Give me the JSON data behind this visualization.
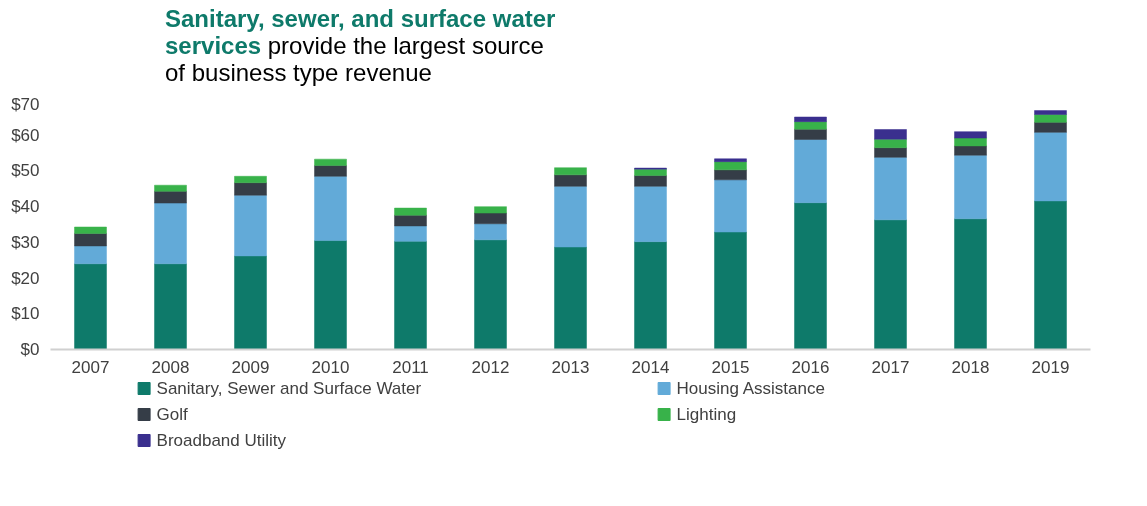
{
  "chart_data": {
    "type": "bar",
    "stacked": true,
    "title": "Sanitary, sewer, and surface water services",
    "subtitle": "provide the largest source of business type revenue",
    "categories": [
      "2007",
      "2008",
      "2009",
      "2010",
      "2011",
      "2012",
      "2013",
      "2014",
      "2015",
      "2016",
      "2017",
      "2018",
      "2019"
    ],
    "series": [
      {
        "name": "Sanitary, Sewer and Surface Water",
        "color": "#0e7a6a",
        "values": [
          24,
          24,
          26.2,
          30.5,
          30.3,
          30.7,
          28.7,
          30.2,
          32.9,
          41.1,
          36.3,
          36.6,
          41.6
        ]
      },
      {
        "name": "Housing Assistance",
        "color": "#62aad8",
        "values": [
          5,
          17,
          17,
          18,
          4.3,
          4.5,
          17,
          15.5,
          14.6,
          17.7,
          17.5,
          17.8,
          19.2
        ]
      },
      {
        "name": "Golf",
        "color": "#353d47",
        "values": [
          3.5,
          3.3,
          3.5,
          3,
          3,
          3,
          3.2,
          3,
          2.8,
          2.9,
          2.7,
          2.6,
          2.8
        ]
      },
      {
        "name": "Lighting",
        "color": "#38b24a",
        "values": [
          1.8,
          1.7,
          1.8,
          1.8,
          2,
          1.8,
          2,
          1.8,
          2.3,
          2.1,
          2.4,
          2.2,
          2.2
        ]
      },
      {
        "name": "Broadband Utility",
        "color": "#3a2f8e",
        "values": [
          null,
          null,
          null,
          null,
          null,
          null,
          null,
          0.3,
          0.8,
          1.3,
          2.7,
          1.8,
          1.1
        ]
      }
    ],
    "ylim": [
      0,
      70
    ],
    "yticks": [
      {
        "value": 0,
        "label": "$0"
      },
      {
        "value": 10,
        "label": "$10"
      },
      {
        "value": 20,
        "label": "$20"
      },
      {
        "value": 30,
        "label": "$30"
      },
      {
        "value": 40,
        "label": "$40"
      },
      {
        "value": 50,
        "label": "$50"
      },
      {
        "value": 60,
        "label": "$60"
      },
      {
        "value": 70,
        "label": "$70"
      }
    ],
    "grid": false,
    "legend": "bottom"
  }
}
